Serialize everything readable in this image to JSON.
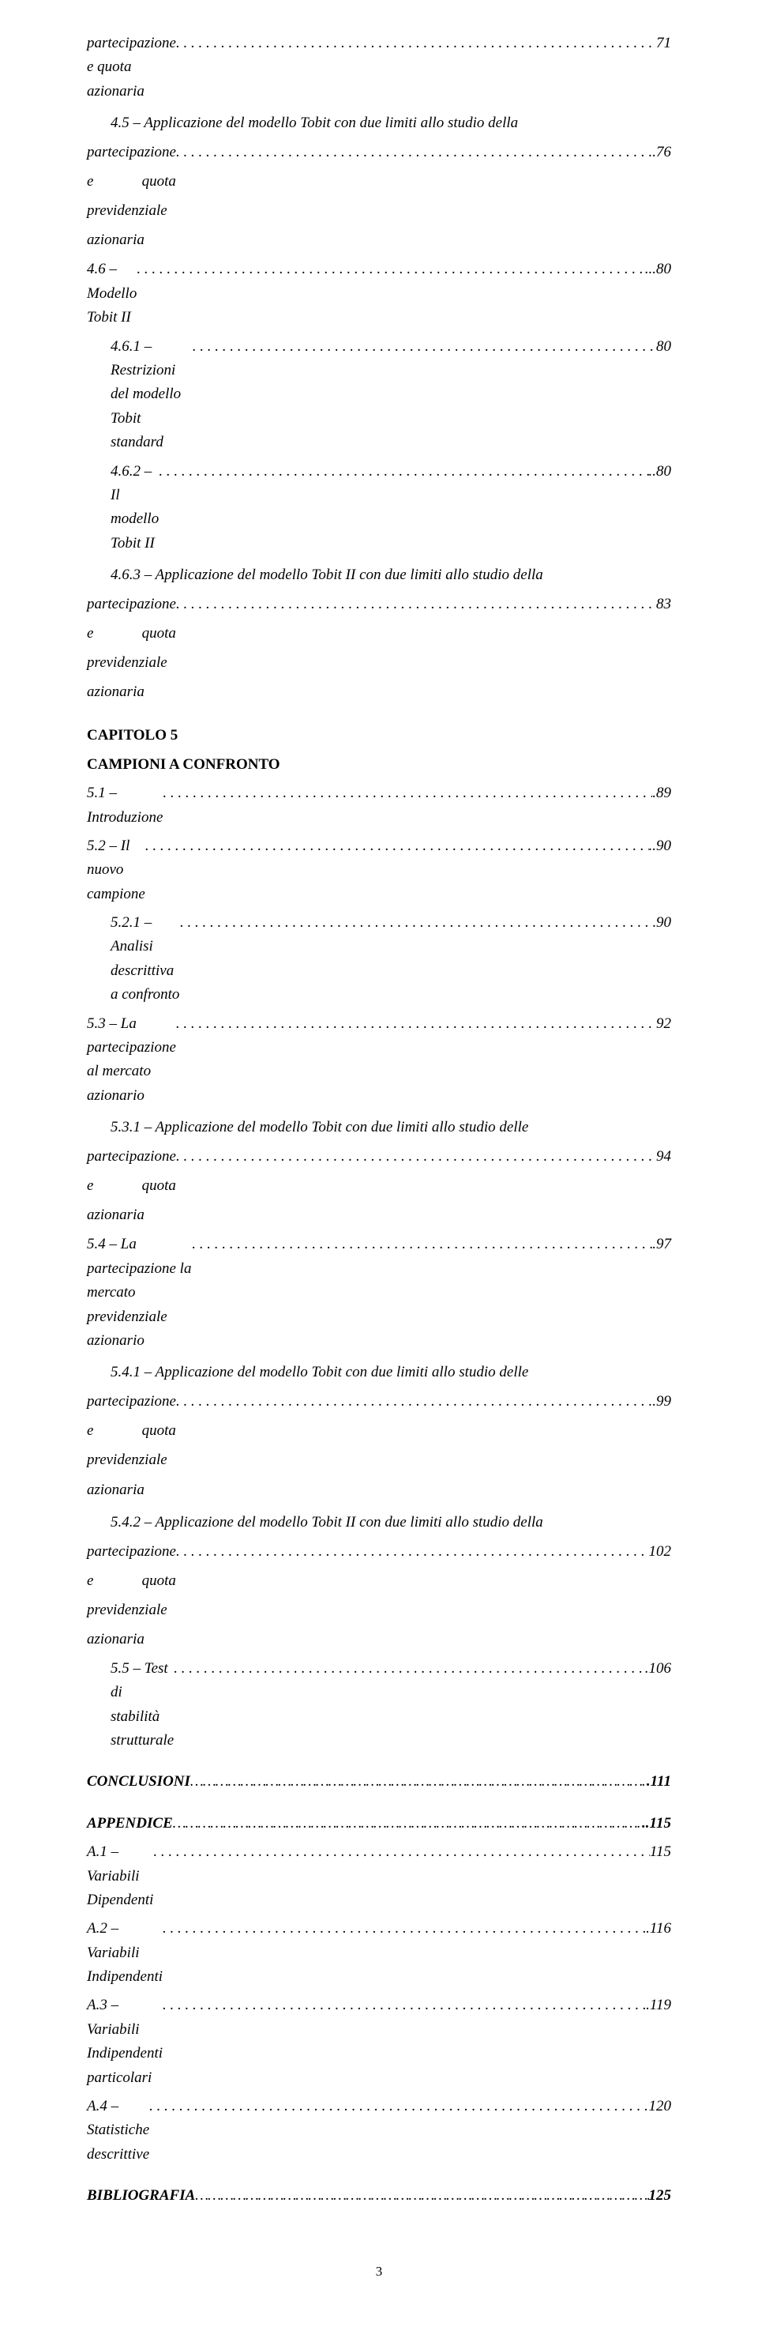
{
  "lines": [
    {
      "style": "ital",
      "indent": 0,
      "text": "partecipazione e quota azionaria",
      "page": "71"
    },
    {
      "style": "multiline",
      "indent": 1,
      "first": "4.5 – Applicazione del modello Tobit con due limiti allo studio della",
      "last": "partecipazione e quota previdenziale azionaria",
      "page": "..76"
    },
    {
      "style": "ital",
      "indent": 0,
      "text": "4.6 – Modello Tobit II",
      "page": "...80"
    },
    {
      "style": "ital",
      "indent": 1,
      "text": "4.6.1 – Restrizioni del modello Tobit standard",
      "page": "80"
    },
    {
      "style": "ital",
      "indent": 1,
      "text": "4.6.2 – Il modello Tobit II",
      "page": "..80"
    },
    {
      "style": "multiline",
      "indent": 1,
      "first": "4.6.3 – Applicazione del modello Tobit II con due limiti allo studio della",
      "last": "partecipazione e quota previdenziale azionaria",
      "page": "83"
    },
    {
      "style": "bold",
      "indent": 0,
      "text": "CAPITOLO 5",
      "page": "",
      "nogap": true,
      "pretop": true
    },
    {
      "style": "bold",
      "indent": 0,
      "text": "CAMPIONI A CONFRONTO",
      "page": "",
      "nogap": true
    },
    {
      "style": "ital",
      "indent": 0,
      "text": "5.1 – Introduzione",
      "page": ".89"
    },
    {
      "style": "ital",
      "indent": 0,
      "text": "5.2 – Il nuovo campione",
      "page": "..90"
    },
    {
      "style": "ital",
      "indent": 1,
      "text": "5.2.1 – Analisi descrittiva a confronto",
      "page": "90"
    },
    {
      "style": "ital",
      "indent": 0,
      "text": "5.3 – La partecipazione al mercato azionario",
      "page": "92"
    },
    {
      "style": "multiline",
      "indent": 1,
      "first": "5.3.1 – Applicazione del modello Tobit con due limiti allo studio delle",
      "last": "partecipazione e quota azionaria",
      "page": "94"
    },
    {
      "style": "ital",
      "indent": 0,
      "text": "5.4 – La partecipazione la mercato previdenziale azionario",
      "page": ".97"
    },
    {
      "style": "multiline",
      "indent": 1,
      "first": "5.4.1 – Applicazione del modello Tobit con due limiti allo studio delle",
      "last": "partecipazione e quota previdenziale azionaria",
      "page": "..99"
    },
    {
      "style": "multiline",
      "indent": 1,
      "first": "5.4.2 – Applicazione del modello Tobit II con due limiti allo studio della",
      "last": "partecipazione e quota previdenziale azionaria",
      "page": "102"
    },
    {
      "style": "ital",
      "indent": 1,
      "text": "5.5 – Test di stabilità strutturale",
      "page": ".106"
    },
    {
      "style": "boldital",
      "indent": 0,
      "text": "CONCLUSIONI",
      "page": ".111",
      "dotstyle": "tight",
      "pretop": true
    },
    {
      "style": "boldital",
      "indent": 0,
      "text": "APPENDICE",
      "page": "..115",
      "dotstyle": "tight",
      "pretop": true
    },
    {
      "style": "ital",
      "indent": 0,
      "text": "A.1 – Variabili Dipendenti",
      "page": "115"
    },
    {
      "style": "ital",
      "indent": 0,
      "text": "A.2 – Variabili Indipendenti",
      "page": ".116"
    },
    {
      "style": "ital",
      "indent": 0,
      "text": "A.3 – Variabili Indipendenti particolari",
      "page": ".119"
    },
    {
      "style": "ital",
      "indent": 0,
      "text": "A.4 – Statistiche descrittive",
      "page": "120"
    },
    {
      "style": "boldital",
      "indent": 0,
      "text": "BIBLIOGRAFIA",
      "page": "125",
      "dotstyle": "tight",
      "pretop": true
    }
  ],
  "pageNumber": "3",
  "colors": {
    "background": "#ffffff",
    "text": "#000000"
  },
  "typography": {
    "body_fontsize_pt": 14,
    "font_family": "Times New Roman"
  }
}
